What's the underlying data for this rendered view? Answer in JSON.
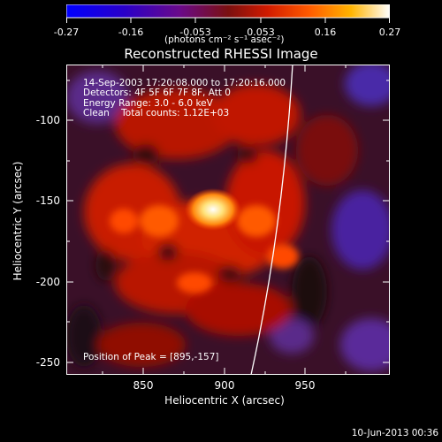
{
  "colorbar": {
    "tick_labels": [
      "-0.27",
      "-0.16",
      "-0.053",
      "0.053",
      "0.16",
      "0.27"
    ],
    "units": "(photons cm⁻² s⁻¹ asec⁻²)",
    "range": [
      -0.27,
      0.27
    ]
  },
  "plot": {
    "title": "Reconstructed RHESSI Image",
    "xlabel": "Heliocentric X (arcsec)",
    "ylabel": "Heliocentric Y (arcsec)",
    "xticks": [
      "850",
      "900",
      "950"
    ],
    "yticks": [
      "-100",
      "-150",
      "-200",
      "-250"
    ],
    "x_range": [
      809,
      993
    ],
    "y_range": [
      -262,
      -73
    ]
  },
  "overlay": {
    "time": "14-Sep-2003 17:20:08.000 to 17:20:16.000",
    "detectors": "Detectors: 4F 5F 6F 7F 8F, Att 0",
    "energy": "Energy Range: 3.0 - 6.0 keV",
    "clean": "Clean    Total counts: 1.12E+03",
    "peak": "Position of Peak = [895,-157]"
  },
  "footer": {
    "date": "10-Jun-2013 00:36"
  },
  "colors": {
    "background": "#000000",
    "text": "#ffffff",
    "cmap_low": "#0000ff",
    "cmap_mid": "#5a1a2a",
    "cmap_high": "#ffffff"
  }
}
